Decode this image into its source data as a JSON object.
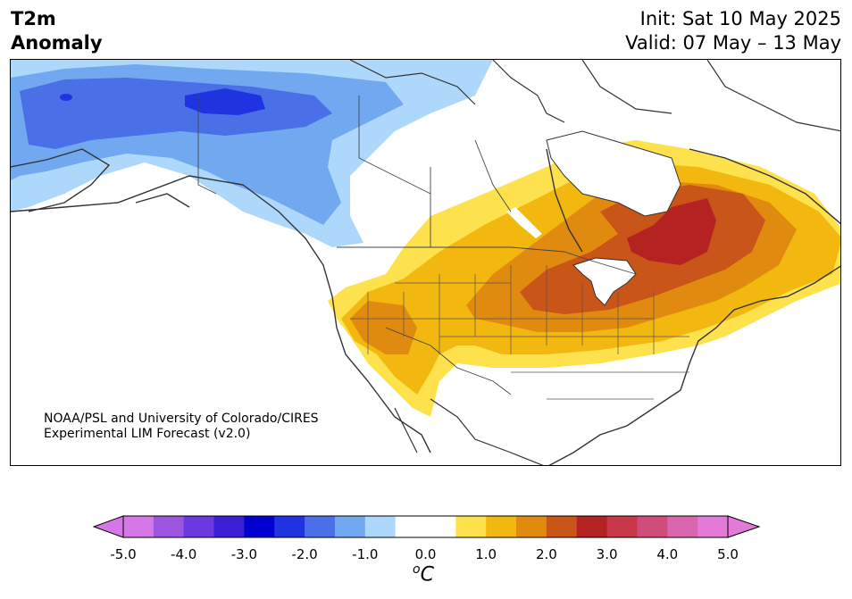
{
  "header": {
    "title_line1": "T2m",
    "title_line2": "Anomaly",
    "init": "Init: Sat 10 May 2025",
    "valid": "Valid: 07 May – 13 May"
  },
  "credit": {
    "line1": "NOAA/PSL and University of Colorado/CIRES",
    "line2": "Experimental LIM Forecast (v2.0)"
  },
  "colorbar": {
    "unit": "C",
    "unit_prefix": "o",
    "tick_labels": [
      "-5.0",
      "-4.0",
      "-3.0",
      "-2.0",
      "-1.0",
      "0.0",
      "1.0",
      "2.0",
      "3.0",
      "4.0",
      "5.0"
    ],
    "colors": [
      "#d577e6",
      "#9b55de",
      "#6a3ae0",
      "#3a1fd5",
      "#0000d0",
      "#2033e0",
      "#4a6fe6",
      "#72a8f0",
      "#aed8fb",
      "#ffffff",
      "#ffffff",
      "#fde24d",
      "#f3b80f",
      "#e08a10",
      "#c95518",
      "#b42222",
      "#c83848",
      "#d04c7a",
      "#da66b0",
      "#e37ad8"
    ],
    "under_color": "#d577e6",
    "over_color": "#e37ad8"
  },
  "map": {
    "region": "North America",
    "ocean_color": "#ffffff",
    "coast_color": "#333333"
  }
}
